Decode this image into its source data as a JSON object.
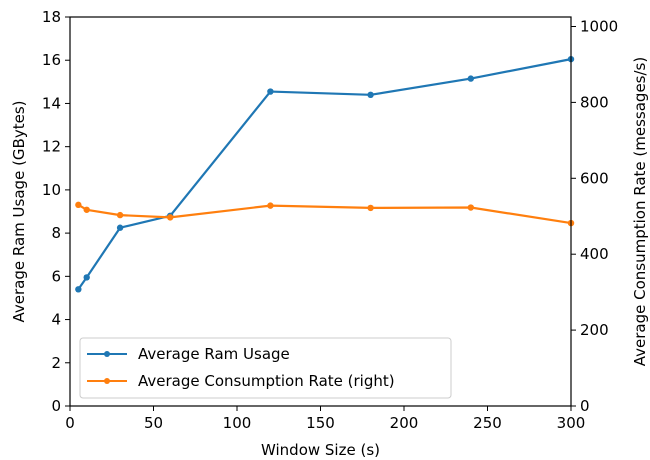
{
  "chart_data": {
    "type": "line",
    "xlabel": "Window Size (s)",
    "ylabel": "Average Ram Usage (GBytes)",
    "ylabel_right": "Average Consumption Rate (messages/s)",
    "xlim": [
      0,
      300
    ],
    "ylim": [
      0,
      18
    ],
    "ylim_right": [
      0,
      1025
    ],
    "x_ticks": [
      0,
      50,
      100,
      150,
      200,
      250,
      300
    ],
    "y_ticks": [
      0,
      2,
      4,
      6,
      8,
      10,
      12,
      14,
      16,
      18
    ],
    "y_ticks_right": [
      0,
      200,
      400,
      600,
      800,
      1000
    ],
    "grid": false,
    "legend_placement": "lower-left",
    "x": [
      5,
      10,
      30,
      60,
      120,
      180,
      240,
      300
    ],
    "series": [
      {
        "name": "Average Ram Usage",
        "axis": "left",
        "color": "#1f77b4",
        "values": [
          5.4,
          5.95,
          8.25,
          8.8,
          14.55,
          14.4,
          15.15,
          16.05
        ]
      },
      {
        "name": "Average Consumption Rate (right)",
        "axis": "right",
        "color": "#ff7f0e",
        "values": [
          530,
          517,
          503,
          497,
          528,
          522,
          523,
          482
        ]
      }
    ]
  }
}
